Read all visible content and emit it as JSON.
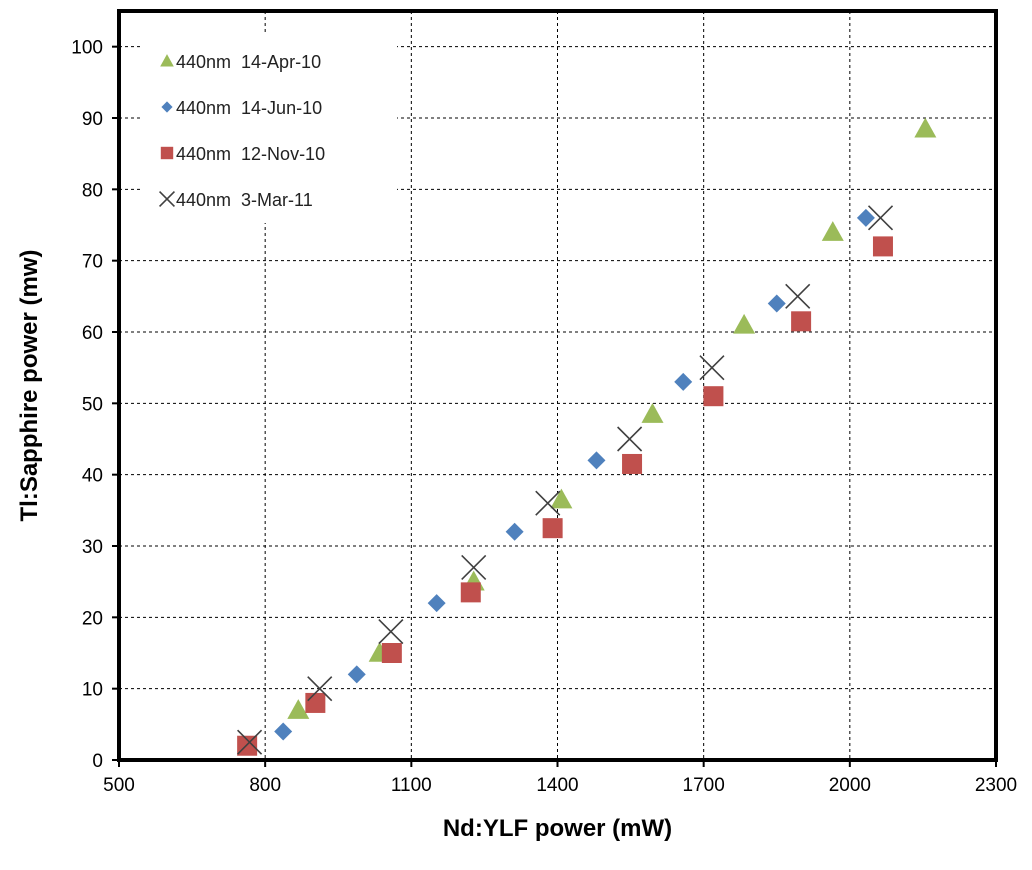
{
  "chart_data": {
    "type": "scatter",
    "title": "",
    "xlabel": "Nd:YLF power (mW)",
    "ylabel": "Tl:Sapphire power (mw)",
    "xlim": [
      500,
      2300
    ],
    "ylim": [
      0,
      105
    ],
    "xticks": [
      500,
      800,
      1100,
      1400,
      1700,
      2000,
      2300
    ],
    "yticks": [
      0,
      10,
      20,
      30,
      40,
      50,
      60,
      70,
      80,
      90,
      100
    ],
    "grid": true,
    "legend_position": "top-left",
    "series": [
      {
        "name": "440nm  14-Apr-10",
        "marker": "triangle",
        "color": "#9bbb59",
        "points": [
          [
            868,
            7
          ],
          [
            1035,
            15
          ],
          [
            1228,
            25
          ],
          [
            1408,
            36.5
          ],
          [
            1595,
            48.5
          ],
          [
            1783,
            61
          ],
          [
            1965,
            74
          ],
          [
            2155,
            88.5
          ]
        ]
      },
      {
        "name": "440nm  14-Jun-10",
        "marker": "diamond",
        "color": "#4f81bd",
        "points": [
          [
            837,
            4
          ],
          [
            988,
            12
          ],
          [
            1152,
            22
          ],
          [
            1312,
            32
          ],
          [
            1480,
            42
          ],
          [
            1658,
            53
          ],
          [
            1850,
            64
          ],
          [
            2033,
            76
          ]
        ]
      },
      {
        "name": "440nm  12-Nov-10",
        "marker": "square",
        "color": "#c0504d",
        "points": [
          [
            763,
            2
          ],
          [
            903,
            8
          ],
          [
            1060,
            15
          ],
          [
            1222,
            23.5
          ],
          [
            1390,
            32.5
          ],
          [
            1553,
            41.5
          ],
          [
            1720,
            51
          ],
          [
            1900,
            61.5
          ],
          [
            2068,
            72
          ]
        ]
      },
      {
        "name": "440nm  3-Mar-11",
        "marker": "x",
        "color": "#404040",
        "points": [
          [
            768,
            2.5
          ],
          [
            912,
            10
          ],
          [
            1058,
            18
          ],
          [
            1228,
            27
          ],
          [
            1380,
            36
          ],
          [
            1548,
            45
          ],
          [
            1717,
            55
          ],
          [
            1893,
            65
          ],
          [
            2063,
            76
          ]
        ]
      }
    ]
  }
}
